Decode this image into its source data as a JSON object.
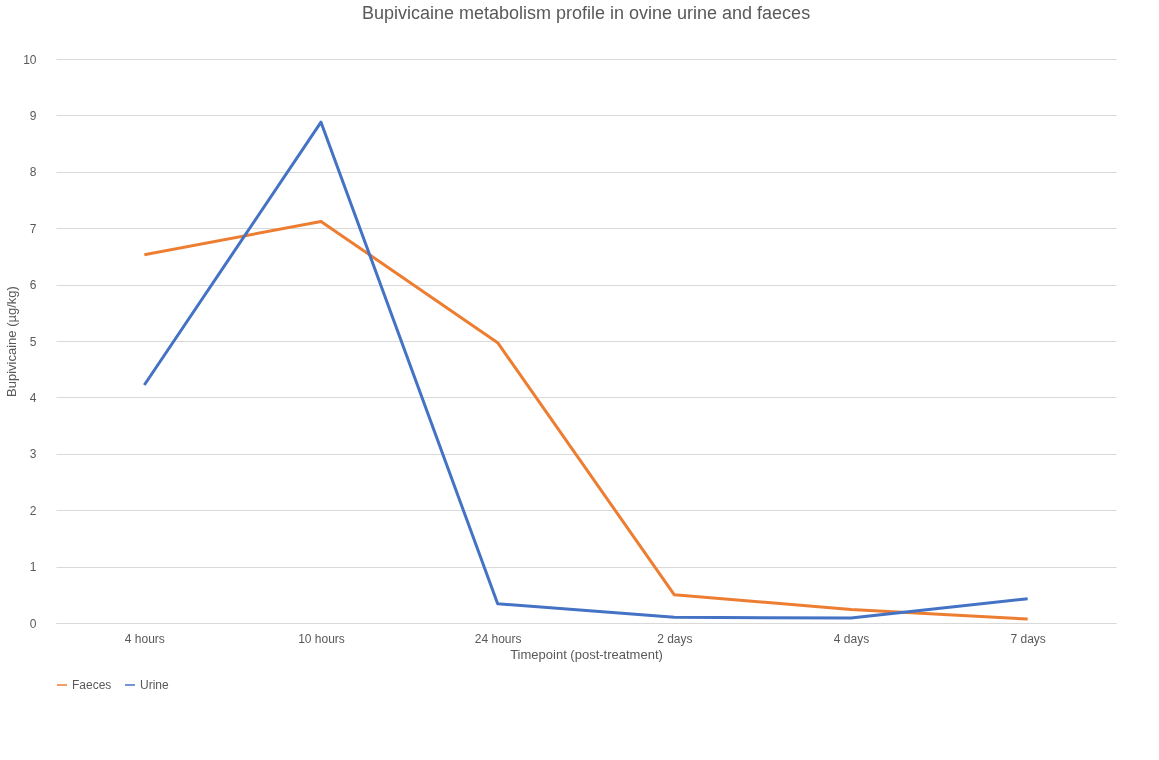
{
  "chart_data": {
    "type": "line",
    "title": "Bupivicaine metabolism profile in ovine urine and faeces",
    "xlabel": "Timepoint (post-treatment)",
    "ylabel": "Bupivicaine (µg/kg)",
    "categories": [
      "4 hours",
      "10 hours",
      "24 hours",
      "2 days",
      "4 days",
      "7 days"
    ],
    "series": [
      {
        "name": "Faeces",
        "color": "#ed7d31",
        "values": [
          6.53,
          7.12,
          4.97,
          0.5,
          0.24,
          0.07
        ]
      },
      {
        "name": "Urine",
        "color": "#4472c4",
        "values": [
          4.22,
          8.88,
          0.34,
          0.1,
          0.09,
          0.43
        ]
      }
    ],
    "ylim": [
      0,
      10
    ],
    "yticks": [
      0,
      1,
      2,
      3,
      4,
      5,
      6,
      7,
      8,
      9,
      10
    ],
    "grid": "y",
    "legend": "bottom",
    "marker": "none",
    "line_style": "solid"
  }
}
